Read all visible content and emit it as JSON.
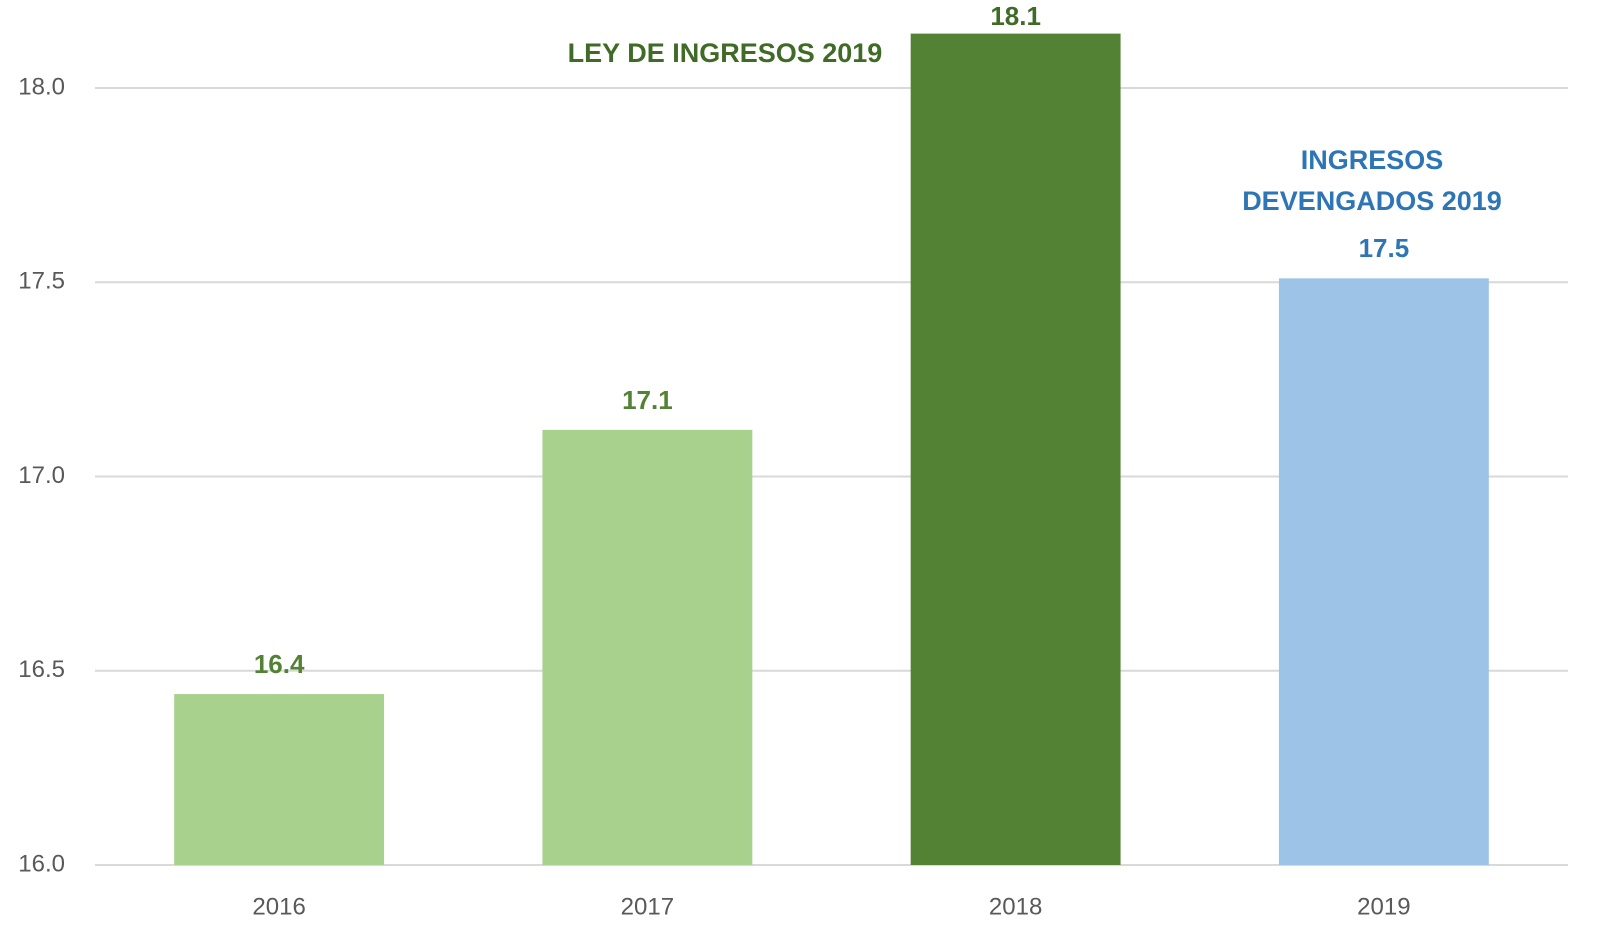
{
  "chart_data": {
    "type": "bar",
    "categories": [
      "2016",
      "2017",
      "2018",
      "2019"
    ],
    "values": [
      16.44,
      17.12,
      18.14,
      17.51
    ],
    "value_labels": [
      "16.4",
      "17.1",
      "18.1",
      "17.5"
    ],
    "colors": [
      "#a9d18e",
      "#a9d18e",
      "#548235",
      "#9dc3e6"
    ],
    "value_label_colors": [
      "#548235",
      "#548235",
      "#3f6b27",
      "#2e75b6"
    ],
    "ylim": [
      16,
      18.2
    ],
    "yticks": [
      {
        "value": 16,
        "label": "16.0"
      },
      {
        "value": 16.5,
        "label": "16.5"
      },
      {
        "value": 17,
        "label": "17.0"
      },
      {
        "value": 17.5,
        "label": "17.5"
      },
      {
        "value": 18,
        "label": "18.0"
      }
    ],
    "grid": true,
    "annotations": [
      {
        "lines": [
          "LEY DE INGRESOS 2019"
        ],
        "color": "#3f6b27"
      },
      {
        "lines": [
          "INGRESOS",
          "DEVENGADOS 2019"
        ],
        "color": "#2e75b6"
      }
    ]
  }
}
